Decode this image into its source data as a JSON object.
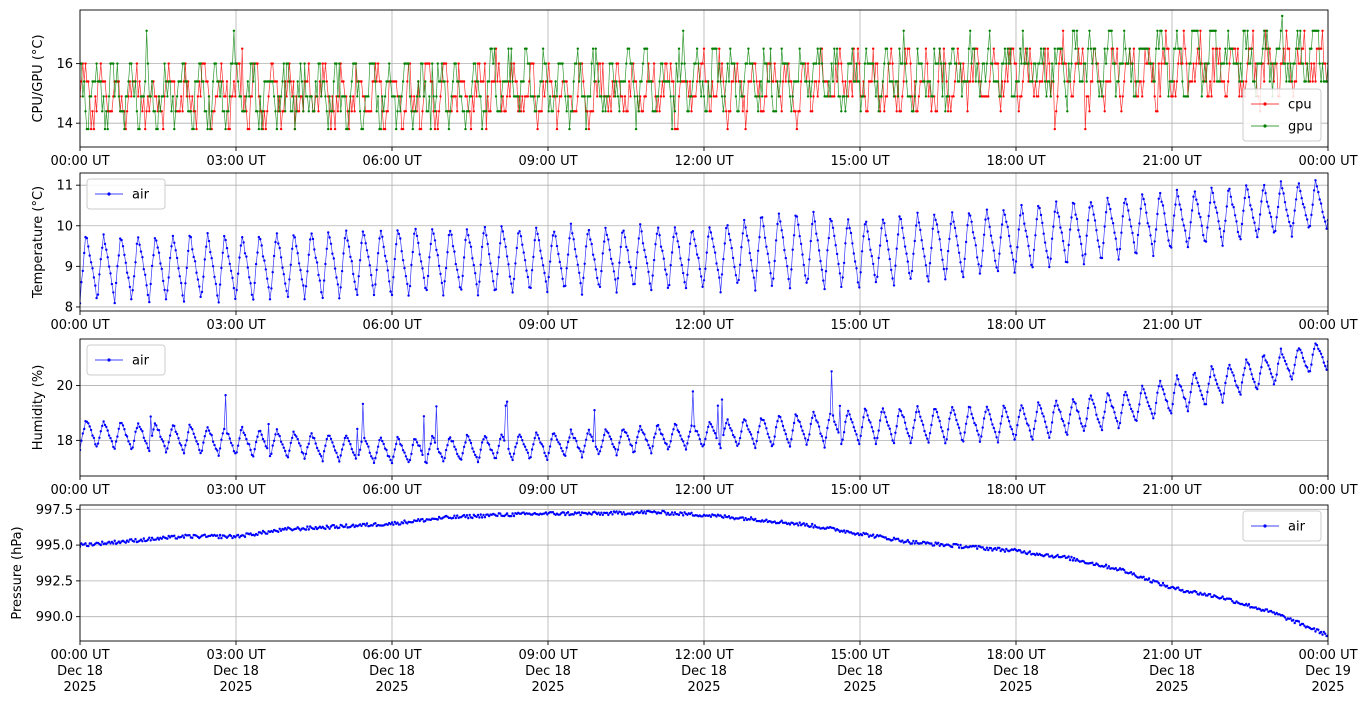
{
  "chart_data": [
    {
      "type": "line",
      "name": "cpu-gpu-panel",
      "ylabel": "CPU/GPU (°C)",
      "xlim": [
        "2025-12-18 00:00",
        "2025-12-19 00:00"
      ],
      "ylim": [
        13.2,
        17.8
      ],
      "yticks": [
        14,
        16
      ],
      "ytick_labels": [
        "14",
        "16"
      ],
      "grid": true,
      "legend_loc": "lower right",
      "levels": [
        13.8,
        14.4,
        14.9,
        15.4,
        16.0,
        16.5,
        17.1,
        17.6
      ],
      "series": [
        {
          "name": "cpu",
          "color": "#ff0000",
          "trend": [
            [
              0,
              14.9
            ],
            [
              6,
              15.0
            ],
            [
              12,
              15.2
            ],
            [
              18,
              15.5
            ],
            [
              24,
              16.0
            ]
          ],
          "amp": 0.9
        },
        {
          "name": "gpu",
          "color": "#008000",
          "trend": [
            [
              0,
              15.0
            ],
            [
              6,
              15.0
            ],
            [
              12,
              15.3
            ],
            [
              18,
              15.8
            ],
            [
              24,
              16.3
            ]
          ],
          "amp": 0.9
        }
      ]
    },
    {
      "type": "line",
      "name": "temperature-panel",
      "ylabel": "Temperature (°C)",
      "xlim": [
        "2025-12-18 00:00",
        "2025-12-19 00:00"
      ],
      "ylim": [
        7.9,
        11.3
      ],
      "yticks": [
        8,
        9,
        10,
        11
      ],
      "ytick_labels": [
        "8",
        "9",
        "10",
        "11"
      ],
      "grid": true,
      "legend_loc": "upper left",
      "period_hours": 0.333,
      "series": [
        {
          "name": "air",
          "color": "#0000ff",
          "min_trend": [
            [
              0,
              8.1
            ],
            [
              3,
              8.1
            ],
            [
              6,
              8.2
            ],
            [
              9,
              8.3
            ],
            [
              12,
              8.4
            ],
            [
              15,
              8.4
            ],
            [
              18,
              8.8
            ],
            [
              21,
              9.3
            ],
            [
              24,
              9.9
            ]
          ],
          "max_trend": [
            [
              0,
              9.8
            ],
            [
              3,
              9.8
            ],
            [
              6,
              10.0
            ],
            [
              9,
              10.0
            ],
            [
              12,
              10.0
            ],
            [
              13.5,
              10.4
            ],
            [
              15,
              10.2
            ],
            [
              18,
              10.5
            ],
            [
              21,
              10.9
            ],
            [
              24,
              11.1
            ]
          ]
        }
      ]
    },
    {
      "type": "line",
      "name": "humidity-panel",
      "ylabel": "Humidity (%)",
      "xlim": [
        "2025-12-18 00:00",
        "2025-12-19 00:00"
      ],
      "ylim": [
        16.7,
        21.7
      ],
      "yticks": [
        18,
        20
      ],
      "ytick_labels": [
        "18",
        "20"
      ],
      "grid": true,
      "legend_loc": "upper left",
      "period_hours": 0.333,
      "series": [
        {
          "name": "air",
          "color": "#0000ff",
          "min_trend": [
            [
              0,
              17.7
            ],
            [
              3,
              17.4
            ],
            [
              6,
              17.1
            ],
            [
              9,
              17.3
            ],
            [
              12,
              17.7
            ],
            [
              15,
              17.8
            ],
            [
              18,
              17.9
            ],
            [
              20,
              18.4
            ],
            [
              22,
              19.4
            ],
            [
              24,
              20.6
            ]
          ],
          "max_trend": [
            [
              0,
              18.8
            ],
            [
              3,
              18.5
            ],
            [
              6,
              18.1
            ],
            [
              9,
              18.3
            ],
            [
              12,
              18.7
            ],
            [
              15,
              19.2
            ],
            [
              18,
              19.3
            ],
            [
              20,
              19.8
            ],
            [
              22,
              20.8
            ],
            [
              24,
              21.7
            ]
          ]
        }
      ]
    },
    {
      "type": "line",
      "name": "pressure-panel",
      "ylabel": "Pressure (hPa)",
      "xlim": [
        "2025-12-18 00:00",
        "2025-12-19 00:00"
      ],
      "ylim": [
        988.3,
        997.8
      ],
      "yticks": [
        990.0,
        992.5,
        995.0,
        997.5
      ],
      "ytick_labels": [
        "990.0",
        "992.5",
        "995.0",
        "997.5"
      ],
      "grid": true,
      "legend_loc": "upper right",
      "series": [
        {
          "name": "air",
          "color": "#0000ff",
          "trend": [
            [
              0,
              995.0
            ],
            [
              1,
              995.3
            ],
            [
              2,
              995.6
            ],
            [
              3,
              995.6
            ],
            [
              4,
              996.1
            ],
            [
              5,
              996.3
            ],
            [
              6,
              996.5
            ],
            [
              7,
              996.9
            ],
            [
              8,
              997.1
            ],
            [
              9,
              997.2
            ],
            [
              10,
              997.2
            ],
            [
              11,
              997.3
            ],
            [
              12,
              997.1
            ],
            [
              13,
              996.8
            ],
            [
              14,
              996.4
            ],
            [
              15,
              995.8
            ],
            [
              16,
              995.2
            ],
            [
              17,
              994.9
            ],
            [
              18,
              994.6
            ],
            [
              19,
              994.1
            ],
            [
              20,
              993.3
            ],
            [
              21,
              992.0
            ],
            [
              22,
              991.3
            ],
            [
              23,
              990.2
            ],
            [
              24,
              988.7
            ]
          ]
        }
      ]
    }
  ],
  "x_axis": {
    "tick_times": [
      "00:00 UT",
      "03:00 UT",
      "06:00 UT",
      "09:00 UT",
      "12:00 UT",
      "15:00 UT",
      "18:00 UT",
      "21:00 UT",
      "00:00 UT"
    ],
    "tick_dates": [
      "Dec 18",
      "Dec 18",
      "Dec 18",
      "Dec 18",
      "Dec 18",
      "Dec 18",
      "Dec 18",
      "Dec 18",
      "Dec 19"
    ],
    "tick_years": [
      "2025",
      "2025",
      "2025",
      "2025",
      "2025",
      "2025",
      "2025",
      "2025",
      "2025"
    ]
  },
  "style": {
    "grid_color": "#b0b0b0",
    "axis_color": "#000000"
  }
}
